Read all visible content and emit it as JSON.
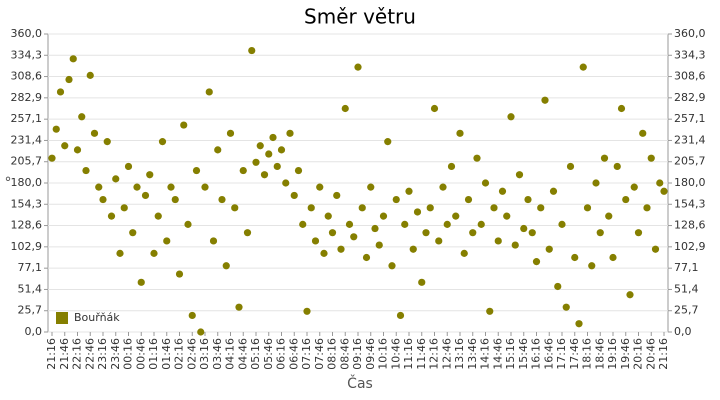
{
  "chart_data": {
    "type": "scatter",
    "title": "Směr větru",
    "x_label": "Čas",
    "y_label": "°",
    "categories": [
      "21:16",
      "21:46",
      "22:16",
      "22:46",
      "23:16",
      "23:46",
      "00:16",
      "00:46",
      "01:16",
      "01:46",
      "02:16",
      "02:46",
      "03:16",
      "03:46",
      "04:16",
      "04:46",
      "05:16",
      "05:46",
      "06:16",
      "06:46",
      "07:16",
      "07:46",
      "08:16",
      "08:46",
      "09:16",
      "09:46",
      "10:16",
      "10:46",
      "11:16",
      "11:46",
      "12:16",
      "12:46",
      "13:16",
      "13:46",
      "14:16",
      "14:46",
      "15:16",
      "15:46",
      "16:16",
      "16:46",
      "17:16",
      "17:46",
      "18:16",
      "18:46",
      "19:16",
      "19:46",
      "20:16",
      "20:46",
      "21:16"
    ],
    "ylim": [
      0,
      360
    ],
    "yticks": [
      {
        "value": 0,
        "label": "0,0"
      },
      {
        "value": 25.7,
        "label": "25,7"
      },
      {
        "value": 51.4,
        "label": "51,4"
      },
      {
        "value": 77.1,
        "label": "77,1"
      },
      {
        "value": 102.9,
        "label": "102,9"
      },
      {
        "value": 128.6,
        "label": "128,6"
      },
      {
        "value": 154.3,
        "label": "154,3"
      },
      {
        "value": 180,
        "label": "180,0"
      },
      {
        "value": 205.7,
        "label": "205,7"
      },
      {
        "value": 231.4,
        "label": "231,4"
      },
      {
        "value": 257.1,
        "label": "257,1"
      },
      {
        "value": 282.9,
        "label": "282,9"
      },
      {
        "value": 308.6,
        "label": "308,6"
      },
      {
        "value": 334.3,
        "label": "334,3"
      },
      {
        "value": 360,
        "label": "360,0"
      }
    ],
    "grid": true,
    "legend": "bottom-left",
    "series": [
      {
        "name": "Bouřňák",
        "color": "#857f00",
        "x": [
          "21:16",
          "21:26",
          "21:36",
          "21:46",
          "21:56",
          "22:06",
          "22:16",
          "22:26",
          "22:36",
          "22:46",
          "22:56",
          "23:06",
          "23:16",
          "23:26",
          "23:36",
          "23:46",
          "23:56",
          "00:06",
          "00:16",
          "00:26",
          "00:36",
          "00:46",
          "00:56",
          "01:06",
          "01:16",
          "01:26",
          "01:36",
          "01:46",
          "01:56",
          "02:06",
          "02:16",
          "02:26",
          "02:36",
          "02:46",
          "02:56",
          "03:06",
          "03:16",
          "03:26",
          "03:36",
          "03:46",
          "03:56",
          "04:06",
          "04:16",
          "04:26",
          "04:36",
          "04:46",
          "04:56",
          "05:06",
          "05:16",
          "05:26",
          "05:36",
          "05:46",
          "05:56",
          "06:06",
          "06:16",
          "06:26",
          "06:36",
          "06:46",
          "06:56",
          "07:06",
          "07:16",
          "07:26",
          "07:36",
          "07:46",
          "07:56",
          "08:06",
          "08:16",
          "08:26",
          "08:36",
          "08:46",
          "08:56",
          "09:06",
          "09:16",
          "09:26",
          "09:36",
          "09:46",
          "09:56",
          "10:06",
          "10:16",
          "10:26",
          "10:36",
          "10:46",
          "10:56",
          "11:06",
          "11:16",
          "11:26",
          "11:36",
          "11:46",
          "11:56",
          "12:06",
          "12:16",
          "12:26",
          "12:36",
          "12:46",
          "12:56",
          "13:06",
          "13:16",
          "13:26",
          "13:36",
          "13:46",
          "13:56",
          "14:06",
          "14:16",
          "14:26",
          "14:36",
          "14:46",
          "14:56",
          "15:06",
          "15:16",
          "15:26",
          "15:36",
          "15:46",
          "15:56",
          "16:06",
          "16:16",
          "16:26",
          "16:36",
          "16:46",
          "16:56",
          "17:06",
          "17:16",
          "17:26",
          "17:36",
          "17:46",
          "17:56",
          "18:06",
          "18:16",
          "18:26",
          "18:36",
          "18:46",
          "18:56",
          "19:06",
          "19:16",
          "19:26",
          "19:36",
          "19:46",
          "19:56",
          "20:06",
          "20:16",
          "20:26",
          "20:36",
          "20:46",
          "20:56",
          "21:06",
          "21:16"
        ],
        "values": [
          210,
          245,
          290,
          225,
          305,
          330,
          220,
          260,
          195,
          310,
          240,
          175,
          160,
          230,
          140,
          185,
          95,
          150,
          200,
          120,
          175,
          60,
          165,
          190,
          95,
          140,
          230,
          110,
          175,
          160,
          70,
          250,
          130,
          20,
          195,
          0,
          175,
          290,
          110,
          220,
          160,
          80,
          240,
          150,
          30,
          195,
          120,
          340,
          205,
          225,
          190,
          215,
          235,
          200,
          220,
          180,
          240,
          165,
          195,
          130,
          25,
          150,
          110,
          175,
          95,
          140,
          120,
          165,
          100,
          270,
          130,
          115,
          320,
          150,
          90,
          175,
          125,
          105,
          140,
          230,
          80,
          160,
          20,
          130,
          170,
          100,
          145,
          60,
          120,
          150,
          270,
          110,
          175,
          130,
          200,
          140,
          240,
          95,
          160,
          120,
          210,
          130,
          180,
          25,
          150,
          110,
          170,
          140,
          260,
          105,
          190,
          125,
          160,
          120,
          85,
          150,
          280,
          100,
          170,
          55,
          130,
          30,
          200,
          90,
          10,
          320,
          150,
          80,
          180,
          120,
          210,
          140,
          90,
          200,
          270,
          160,
          45,
          175,
          120,
          240,
          150,
          210,
          100,
          180,
          170
        ]
      }
    ]
  }
}
